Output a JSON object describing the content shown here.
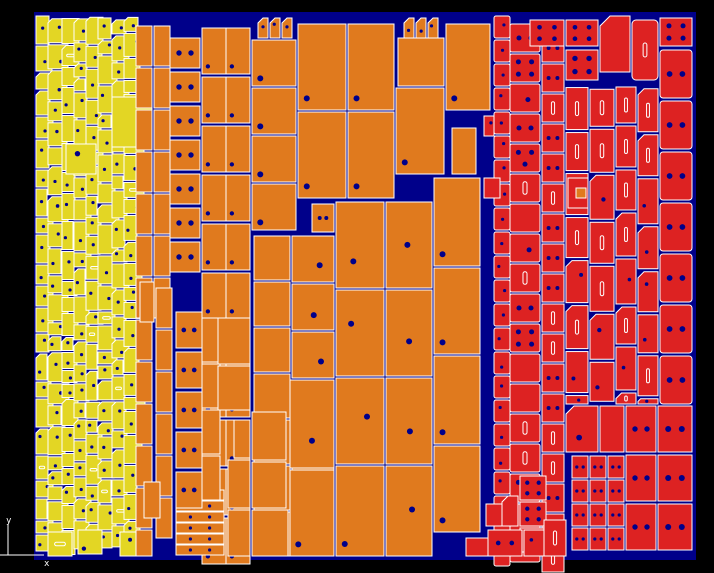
{
  "viewer": {
    "axes": {
      "x_label": "x",
      "y_label": "y"
    }
  },
  "colors": {
    "background": "#000000",
    "sheet": "#00008a",
    "outline": "#ffffff",
    "yellow_parts": "#e3d624",
    "orange_parts": "#e07a1e",
    "red_parts": "#dd2222",
    "hole": "#00008a"
  }
}
